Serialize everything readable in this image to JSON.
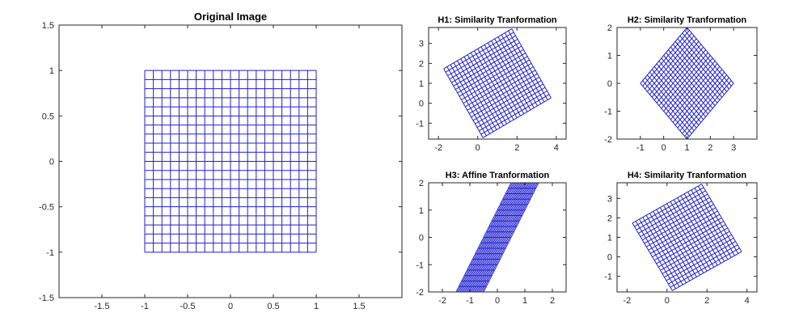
{
  "figure": {
    "background": "#ffffff",
    "line_color": "#1f1fd1",
    "axis_color": "#262626"
  },
  "chart_data": [
    {
      "id": "orig",
      "type": "line",
      "title": "Original Image",
      "xlim": [
        -2,
        2
      ],
      "ylim": [
        -1.5,
        1.5
      ],
      "xticks": [
        -1.5,
        -1,
        -0.5,
        0,
        0.5,
        1,
        1.5
      ],
      "xtick_labels": [
        "-1.5",
        "-1",
        "-0.5",
        "0",
        "0.5",
        "1",
        "1.5"
      ],
      "yticks": [
        -1.5,
        -1,
        -0.5,
        0,
        0.5,
        1,
        1.5
      ],
      "ytick_labels": [
        "-1.5",
        "-1",
        "-0.5",
        "0",
        "0.5",
        "1",
        "1.5"
      ],
      "grid_lines_per_side": 21,
      "grid_extent": [
        -1,
        1
      ],
      "transform": {
        "a": 1,
        "b": 0,
        "c": 0,
        "d": 1,
        "tx": 0,
        "ty": 0
      }
    },
    {
      "id": "h1",
      "type": "line",
      "title": "H1: Similarity Tranformation",
      "xlim": [
        -2.5,
        4.5
      ],
      "ylim": [
        -1.8,
        3.8
      ],
      "xticks": [
        -2,
        0,
        2,
        4
      ],
      "xtick_labels": [
        "-2",
        "0",
        "2",
        "4"
      ],
      "yticks": [
        -1,
        0,
        1,
        2,
        3
      ],
      "ytick_labels": [
        "-1",
        "0",
        "1",
        "2",
        "3"
      ],
      "grid_lines_per_side": 21,
      "grid_extent": [
        -1,
        1
      ],
      "transform": {
        "a": 1.732,
        "b": -1,
        "c": 1,
        "d": 1.732,
        "tx": 1,
        "ty": 1
      }
    },
    {
      "id": "h2",
      "type": "line",
      "title": "H2: Similarity Tranformation",
      "xlim": [
        -2,
        4
      ],
      "ylim": [
        -2,
        2
      ],
      "xticks": [
        -1,
        0,
        1,
        2,
        3
      ],
      "xtick_labels": [
        "-1",
        "0",
        "1",
        "2",
        "3"
      ],
      "yticks": [
        -2,
        -1,
        0,
        1,
        2
      ],
      "ytick_labels": [
        "-2",
        "-1",
        "0",
        "1",
        "2"
      ],
      "grid_lines_per_side": 21,
      "grid_extent": [
        -1,
        1
      ],
      "transform": {
        "a": 1,
        "b": -1,
        "c": 1,
        "d": 1,
        "tx": 1,
        "ty": 0
      }
    },
    {
      "id": "h3",
      "type": "line",
      "title": "H3: Affine Tranformation",
      "xlim": [
        -2.5,
        2.5
      ],
      "ylim": [
        -2,
        2
      ],
      "xticks": [
        -2,
        -1,
        0,
        1,
        2
      ],
      "xtick_labels": [
        "-2",
        "-1",
        "0",
        "1",
        "2"
      ],
      "yticks": [
        -2,
        -1,
        0,
        1,
        2
      ],
      "ytick_labels": [
        "-2",
        "-1",
        "0",
        "1",
        "2"
      ],
      "grid_lines_per_side": 21,
      "grid_extent": [
        -1,
        1
      ],
      "transform": {
        "a": 0.5,
        "b": 1,
        "c": 0,
        "d": 2,
        "tx": 0,
        "ty": 0
      }
    },
    {
      "id": "h4",
      "type": "line",
      "title": "H4: Similarity Tranformation",
      "xlim": [
        -2.5,
        4.5
      ],
      "ylim": [
        -1.8,
        3.8
      ],
      "xticks": [
        -2,
        0,
        2,
        4
      ],
      "xtick_labels": [
        "-2",
        "0",
        "2",
        "4"
      ],
      "yticks": [
        -1,
        0,
        1,
        2,
        3
      ],
      "ytick_labels": [
        "-1",
        "0",
        "1",
        "2",
        "3"
      ],
      "grid_lines_per_side": 21,
      "grid_extent": [
        -1,
        1
      ],
      "transform": {
        "a": 1.732,
        "b": -1,
        "c": 1,
        "d": 1.732,
        "tx": 1,
        "ty": 1
      }
    }
  ]
}
